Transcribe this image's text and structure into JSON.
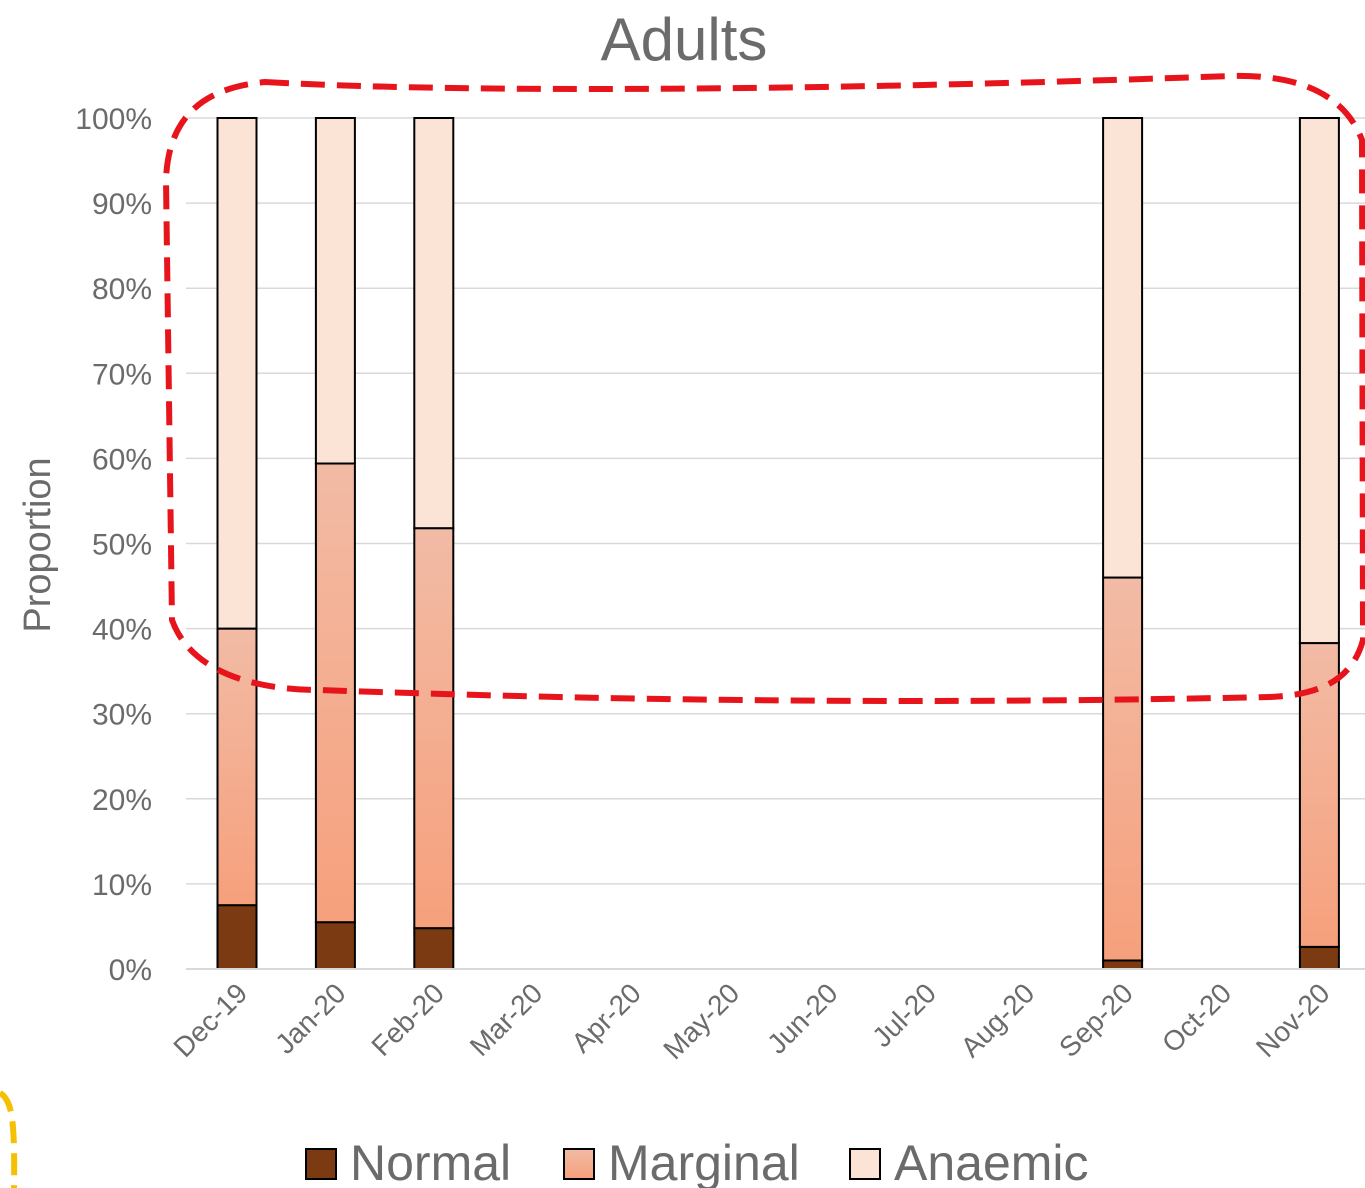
{
  "chart_data": {
    "type": "bar",
    "stacked": true,
    "title": "Adults",
    "xlabel": "",
    "ylabel": "Proportion",
    "ylim": [
      0,
      100
    ],
    "y_tick_labels": [
      "0%",
      "10%",
      "20%",
      "30%",
      "40%",
      "50%",
      "60%",
      "70%",
      "80%",
      "90%",
      "100%"
    ],
    "grid": true,
    "legend_position": "bottom",
    "categories": [
      "Dec-19",
      "Jan-20",
      "Feb-20",
      "Mar-20",
      "Apr-20",
      "May-20",
      "Jun-20",
      "Jul-20",
      "Aug-20",
      "Sep-20",
      "Oct-20",
      "Nov-20"
    ],
    "series": [
      {
        "name": "Normal",
        "color": "#7b3a12",
        "values": [
          7.5,
          5.5,
          4.8,
          null,
          null,
          null,
          null,
          null,
          null,
          1.0,
          null,
          2.6
        ]
      },
      {
        "name": "Marginal",
        "color": "#f4a582",
        "values": [
          32.5,
          53.9,
          47.0,
          null,
          null,
          null,
          null,
          null,
          null,
          45.0,
          null,
          35.7
        ]
      },
      {
        "name": "Anaemic",
        "color": "#fbe3d6",
        "values": [
          60.0,
          40.6,
          48.2,
          null,
          null,
          null,
          null,
          null,
          null,
          54.0,
          null,
          61.7
        ]
      }
    ],
    "annotations": [
      {
        "shape": "dashed-rounded-outline",
        "color": "#e8141b",
        "description_region": "tops of all bars from ~32% to 100%"
      },
      {
        "shape": "dashed-rounded-outline",
        "color": "#f5c000",
        "description_region": "partial, bottom-left corner"
      }
    ]
  }
}
